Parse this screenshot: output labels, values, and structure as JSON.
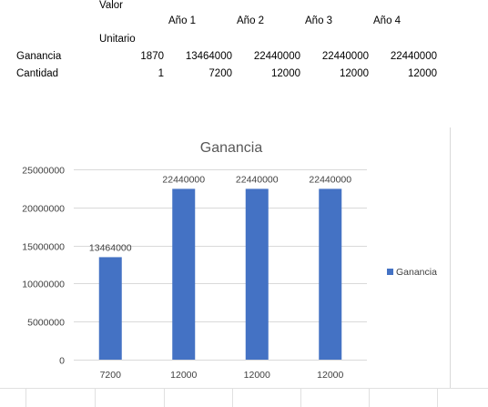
{
  "sheet": {
    "header_row1": {
      "valor": "Valor",
      "year1": "Año 1",
      "year2": "Año 2",
      "year3": "Año 3",
      "year4": "Año 4"
    },
    "header_row2": {
      "unitario": "Unitario"
    },
    "rows": [
      {
        "label": "Ganancia",
        "unit": "1870",
        "values": [
          "13464000",
          "22440000",
          "22440000",
          "22440000"
        ]
      },
      {
        "label": "Cantidad",
        "unit": "1",
        "values": [
          "7200",
          "12000",
          "12000",
          "12000"
        ]
      }
    ]
  },
  "chart_data": {
    "type": "bar",
    "title": "Ganancia",
    "categories": [
      "7200",
      "12000",
      "12000",
      "12000"
    ],
    "series": [
      {
        "name": "Ganancia",
        "values": [
          13464000,
          22440000,
          22440000,
          22440000
        ],
        "color": "#4472c4"
      }
    ],
    "data_labels": [
      "13464000",
      "22440000",
      "22440000",
      "22440000"
    ],
    "ylim": [
      0,
      25000000
    ],
    "yticks": [
      0,
      5000000,
      10000000,
      15000000,
      20000000,
      25000000
    ],
    "ytick_labels": [
      "0",
      "5000000",
      "10000000",
      "15000000",
      "20000000",
      "25000000"
    ],
    "grid": true,
    "legend_position": "right"
  }
}
